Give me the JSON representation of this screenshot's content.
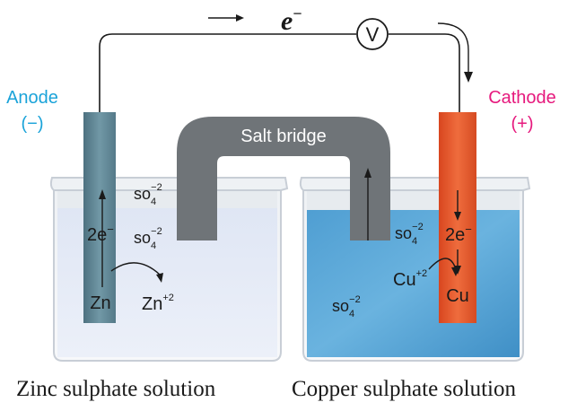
{
  "electron_flow": {
    "symbol": "e",
    "superscript": "−"
  },
  "voltmeter": {
    "label": "V"
  },
  "anode": {
    "title": "Anode",
    "sign": "(−)",
    "color": "#1aa3d9",
    "metal": "Zn",
    "ion_base": "Zn",
    "ion_charge": "+2",
    "electrons": "2e",
    "electrons_charge": "−"
  },
  "cathode": {
    "title": "Cathode",
    "sign": "(+)",
    "color": "#e6197d",
    "metal": "Cu",
    "ion_base": "Cu",
    "ion_charge": "+2",
    "electrons": "2e",
    "electrons_charge": "−"
  },
  "salt_bridge": {
    "label": "Salt bridge",
    "color": "#6f7478"
  },
  "sulphate": {
    "base": "so",
    "subscript": "4",
    "charge": "−2"
  },
  "captions": {
    "left": "Zinc sulphate solution",
    "right": "Copper sulphate solution"
  },
  "colors": {
    "zinc_solution": "#e4eaf6",
    "copper_solution": "#5ea9d6",
    "zinc_rod": "#5f8595",
    "copper_rod": "#e0522b"
  }
}
